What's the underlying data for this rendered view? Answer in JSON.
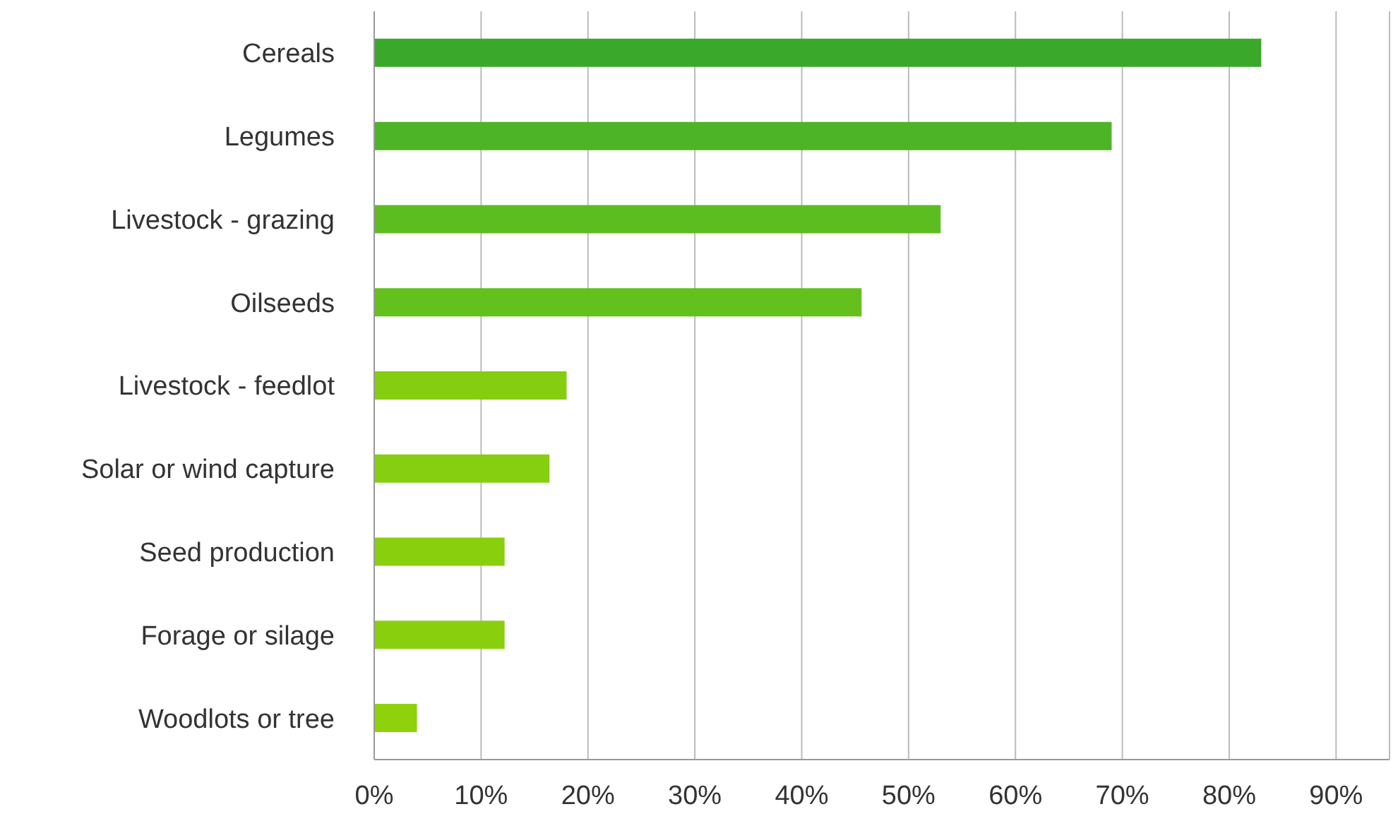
{
  "chart_data": {
    "type": "bar",
    "orientation": "horizontal",
    "categories": [
      "Cereals",
      "Legumes",
      "Livestock - grazing",
      "Oilseeds",
      "Livestock - feedlot",
      "Solar or wind capture",
      "Seed production",
      "Forage or silage",
      "Woodlots or tree"
    ],
    "values": [
      83,
      69,
      53,
      45.6,
      18,
      16.4,
      12.2,
      12.2,
      4
    ],
    "colors": [
      "#3aa82a",
      "#4cb426",
      "#5cbd20",
      "#64c01c",
      "#85cd10",
      "#86ce10",
      "#8acf0e",
      "#8acf0e",
      "#8fd20c"
    ],
    "xlim": [
      0,
      95
    ],
    "xticks": [
      {
        "value": 0,
        "label": "0%"
      },
      {
        "value": 10,
        "label": "10%"
      },
      {
        "value": 20,
        "label": "20%"
      },
      {
        "value": 30,
        "label": "30%"
      },
      {
        "value": 40,
        "label": "40%"
      },
      {
        "value": 50,
        "label": "50%"
      },
      {
        "value": 60,
        "label": "60%"
      },
      {
        "value": 70,
        "label": "70%"
      },
      {
        "value": 80,
        "label": "80%"
      },
      {
        "value": 90,
        "label": "90%"
      }
    ],
    "grid": "x"
  }
}
